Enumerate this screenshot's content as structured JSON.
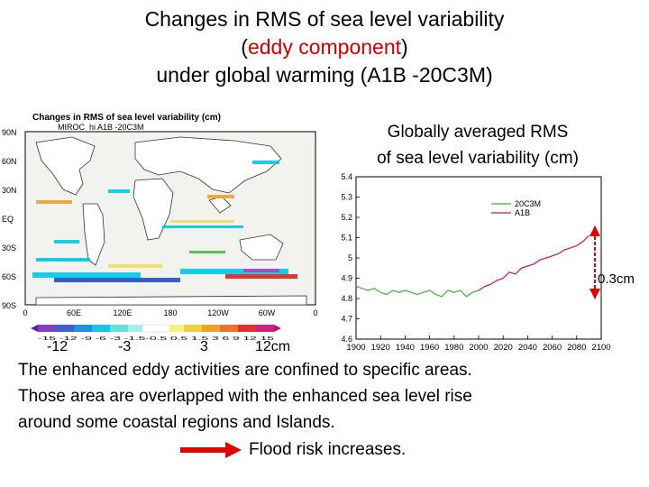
{
  "slide": {
    "title_lines": {
      "line1": "Changes in RMS of sea level variability",
      "line2_open": "(",
      "line2_red": "eddy component",
      "line2_close": ")",
      "line3": "under global warming (A1B -20C3M)"
    },
    "map": {
      "title": "Changes in RMS of sea level variability (cm)",
      "subtitle": "MIROC_hi A1B -20C3M",
      "lat_labels": [
        "90N",
        "60N",
        "30N",
        "EQ",
        "30S",
        "60S",
        "90S"
      ],
      "lon_labels": [
        "0",
        "60E",
        "120E",
        "180",
        "120W",
        "60W",
        "0"
      ],
      "colorbar_labels": [
        "-12",
        "-3",
        "3",
        "12cm"
      ],
      "colorbar_ticks": "-15 -12 -9 -6 -3 -1.5-0.5 0.5 1.5 3 6 9 12 15",
      "colors": {
        "ocean": "#f2f2ee",
        "land": "#ffffff",
        "cyan": "#00c8e8",
        "blue": "#2050c8",
        "yellow": "#f0e060",
        "orange": "#f0a030",
        "red": "#e02020",
        "purple": "#9040c0",
        "green": "#40c040"
      }
    },
    "lineplot": {
      "heading_line1": "Globally averaged RMS",
      "heading_line2": "of sea level variability (cm)",
      "legend": [
        "20C3M",
        "A1B"
      ],
      "annotation": "0.3cm"
    },
    "body_lines": [
      "The enhanced eddy activities are confined to specific areas.",
      "Those area are overlapped with the enhanced sea level rise",
      "around some coastal regions and Islands."
    ],
    "flood_text": "Flood risk increases."
  },
  "chart_data": {
    "type": "line",
    "title": "",
    "xlabel": "",
    "ylabel": "",
    "xlim": [
      1900,
      2100
    ],
    "ylim": [
      4.6,
      5.4
    ],
    "xticks": [
      1900,
      1920,
      1940,
      1960,
      1980,
      2000,
      2020,
      2040,
      2060,
      2080,
      2100
    ],
    "yticks": [
      4.6,
      4.7,
      4.8,
      4.9,
      5.0,
      5.1,
      5.2,
      5.3,
      5.4
    ],
    "series": [
      {
        "name": "20C3M",
        "color": "#40b040",
        "x": [
          1900,
          1905,
          1910,
          1915,
          1920,
          1925,
          1930,
          1935,
          1940,
          1945,
          1950,
          1955,
          1960,
          1965,
          1970,
          1975,
          1980,
          1985,
          1990,
          1995,
          2000
        ],
        "values": [
          4.86,
          4.85,
          4.84,
          4.85,
          4.83,
          4.82,
          4.84,
          4.83,
          4.84,
          4.83,
          4.82,
          4.83,
          4.84,
          4.82,
          4.81,
          4.84,
          4.83,
          4.84,
          4.81,
          4.83,
          4.84
        ]
      },
      {
        "name": "A1B",
        "color": "#c01070",
        "x": [
          2000,
          2005,
          2010,
          2015,
          2020,
          2025,
          2030,
          2035,
          2040,
          2045,
          2050,
          2055,
          2060,
          2065,
          2070,
          2075,
          2080,
          2085,
          2090
        ],
        "values": [
          4.84,
          4.86,
          4.87,
          4.89,
          4.9,
          4.93,
          4.92,
          4.95,
          4.96,
          4.97,
          4.99,
          5.0,
          5.01,
          5.02,
          5.04,
          5.05,
          5.06,
          5.08,
          5.11
        ]
      }
    ]
  }
}
